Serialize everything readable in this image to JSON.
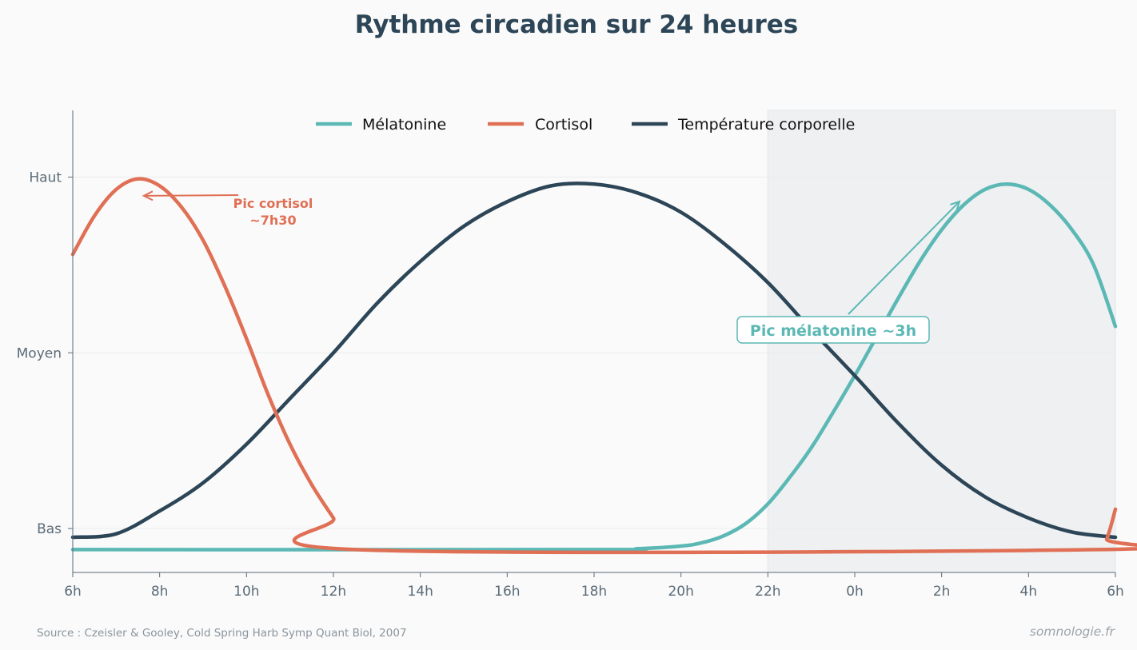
{
  "chart_data": {
    "type": "line",
    "title": "Rythme circadien sur 24 heures",
    "xlabel": "",
    "ylabel": "",
    "x_ticks": [
      "6h",
      "8h",
      "10h",
      "12h",
      "14h",
      "16h",
      "18h",
      "20h",
      "22h",
      "0h",
      "2h",
      "4h",
      "6h"
    ],
    "x_range_hours": [
      6,
      30
    ],
    "y_ticks": [
      {
        "label": "Bas",
        "value": 0
      },
      {
        "label": "Moyen",
        "value": 1
      },
      {
        "label": "Haut",
        "value": 2
      }
    ],
    "ylim": [
      -0.25,
      2.38
    ],
    "grid": "horizontal",
    "legend": {
      "placement": "top-center"
    },
    "night_band_hours": [
      22,
      30
    ],
    "series": [
      {
        "name": "Mélatonine",
        "color": "#5bb8b4",
        "points": [
          [
            6,
            -0.12
          ],
          [
            18,
            -0.12
          ],
          [
            19,
            -0.115
          ],
          [
            20,
            -0.1
          ],
          [
            20.5,
            -0.08
          ],
          [
            21,
            -0.04
          ],
          [
            21.5,
            0.03
          ],
          [
            22,
            0.14
          ],
          [
            22.5,
            0.29
          ],
          [
            23,
            0.46
          ],
          [
            23.5,
            0.66
          ],
          [
            24,
            0.87
          ],
          [
            24.5,
            1.09
          ],
          [
            25,
            1.31
          ],
          [
            25.5,
            1.52
          ],
          [
            26,
            1.7
          ],
          [
            26.5,
            1.84
          ],
          [
            27,
            1.93
          ],
          [
            27.5,
            1.96
          ],
          [
            28,
            1.93
          ],
          [
            28.5,
            1.84
          ],
          [
            29,
            1.7
          ],
          [
            29.5,
            1.5
          ],
          [
            30,
            1.15
          ]
        ]
      },
      {
        "name": "Cortisol",
        "color": "#e07055",
        "points": [
          [
            6,
            1.56
          ],
          [
            6.5,
            1.78
          ],
          [
            7,
            1.93
          ],
          [
            7.5,
            1.99
          ],
          [
            8,
            1.95
          ],
          [
            8.5,
            1.83
          ],
          [
            9,
            1.64
          ],
          [
            9.5,
            1.38
          ],
          [
            10,
            1.08
          ],
          [
            10.5,
            0.76
          ],
          [
            11,
            0.48
          ],
          [
            11.5,
            0.25
          ],
          [
            12,
            0.06
          ],
          [
            12.5,
            -0.12
          ],
          [
            29.6,
            -0.12
          ],
          [
            29.8,
            -0.06
          ],
          [
            30,
            0.11
          ]
        ]
      },
      {
        "name": "Température corporelle",
        "color": "#2c4557",
        "points": [
          [
            6,
            -0.05
          ],
          [
            7,
            -0.03
          ],
          [
            8,
            0.1
          ],
          [
            9,
            0.26
          ],
          [
            10,
            0.48
          ],
          [
            11,
            0.74
          ],
          [
            12,
            1.0
          ],
          [
            13,
            1.28
          ],
          [
            14,
            1.52
          ],
          [
            15,
            1.72
          ],
          [
            16,
            1.86
          ],
          [
            17,
            1.95
          ],
          [
            18,
            1.96
          ],
          [
            19,
            1.91
          ],
          [
            20,
            1.8
          ],
          [
            21,
            1.62
          ],
          [
            22,
            1.4
          ],
          [
            23,
            1.13
          ],
          [
            24,
            0.87
          ],
          [
            25,
            0.6
          ],
          [
            26,
            0.36
          ],
          [
            27,
            0.18
          ],
          [
            28,
            0.06
          ],
          [
            29,
            -0.02
          ],
          [
            30,
            -0.05
          ]
        ]
      }
    ],
    "annotations": [
      {
        "lines": [
          "Pic cortisol",
          "~7h30"
        ],
        "color": "#e07055",
        "point": [
          7.6,
          1.93
        ],
        "label_pos": [
          10.5,
          1.8
        ]
      },
      {
        "lines": [
          "Pic mélatonine ~3h"
        ],
        "color": "#5bb8b4",
        "point": [
          26.4,
          1.78
        ],
        "label_pos": [
          23.4,
          1.12
        ],
        "boxed": true
      }
    ]
  },
  "footer": {
    "source": "Source : Czeisler & Gooley, Cold Spring Harb Symp Quant Biol, 2007",
    "brand": "somnologie.fr"
  }
}
